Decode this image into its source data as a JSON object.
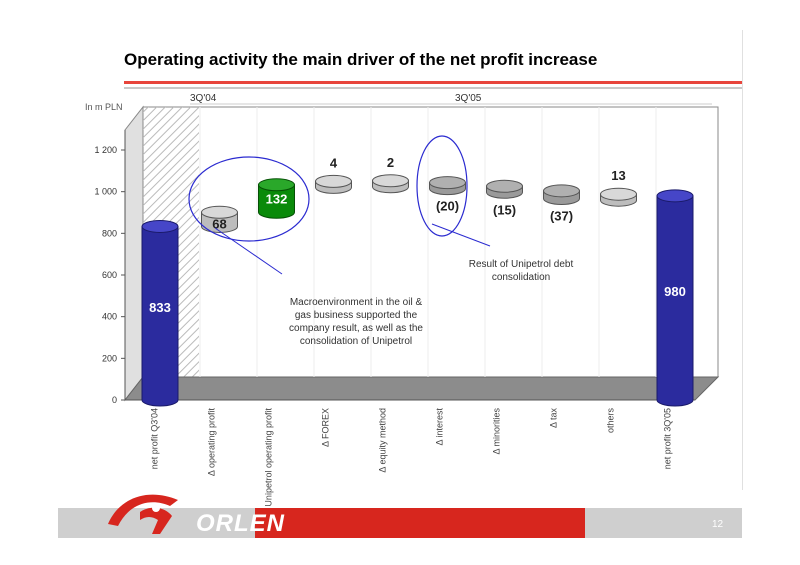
{
  "slide": {
    "title": "Operating activity the main driver of the net profit increase",
    "page_number": "12",
    "logo_text": "ORLEN"
  },
  "annotations": {
    "macro": "Macroenvironment in the oil & gas business supported the company result, as well as the consolidation of Unipetrol",
    "unipetrol_debt": "Result of Unipetrol debt consolidation"
  },
  "colors": {
    "blue_bar": "#2b2b9e",
    "green_bar": "#0a8a0a",
    "grey_bar": "#bdbdbd",
    "accent_red": "#d7261e",
    "ellipse": "#2b2bd0"
  },
  "chart_data": {
    "type": "bar",
    "subtype": "waterfall",
    "ylabel": "In m PLN",
    "ylim": [
      0,
      1300
    ],
    "yticks": [
      0,
      200,
      400,
      600,
      800,
      1000,
      1200
    ],
    "ytick_labels": [
      "0",
      "200",
      "400",
      "600",
      "800",
      "1 000",
      "1 200"
    ],
    "period_labels": [
      "3Q'04",
      "3Q'05"
    ],
    "categories": [
      "net profit Q3'04",
      "Δ operating profit",
      "Δ Unipetrol operating profit",
      "Δ FOREX",
      "Δ equity method",
      "Δ interest",
      "Δ minorities",
      "Δ tax",
      "others",
      "net profit 3Q'05"
    ],
    "values": [
      833,
      68,
      132,
      4,
      2,
      -20,
      -15,
      -37,
      13,
      980
    ],
    "data_labels": [
      "833",
      "68",
      "132",
      "4",
      "2",
      "(20)",
      "(15)",
      "(37)",
      "13",
      "980"
    ],
    "bar_kind": [
      "total",
      "delta",
      "delta-highlight",
      "delta",
      "delta",
      "delta",
      "delta",
      "delta",
      "delta",
      "total"
    ],
    "level_before": [
      0,
      833,
      901,
      1033,
      1037,
      1039,
      1019,
      1004,
      967,
      0
    ],
    "level_after": [
      833,
      901,
      1033,
      1037,
      1039,
      1019,
      1004,
      967,
      980,
      980
    ],
    "grid": false,
    "legend": "none"
  }
}
